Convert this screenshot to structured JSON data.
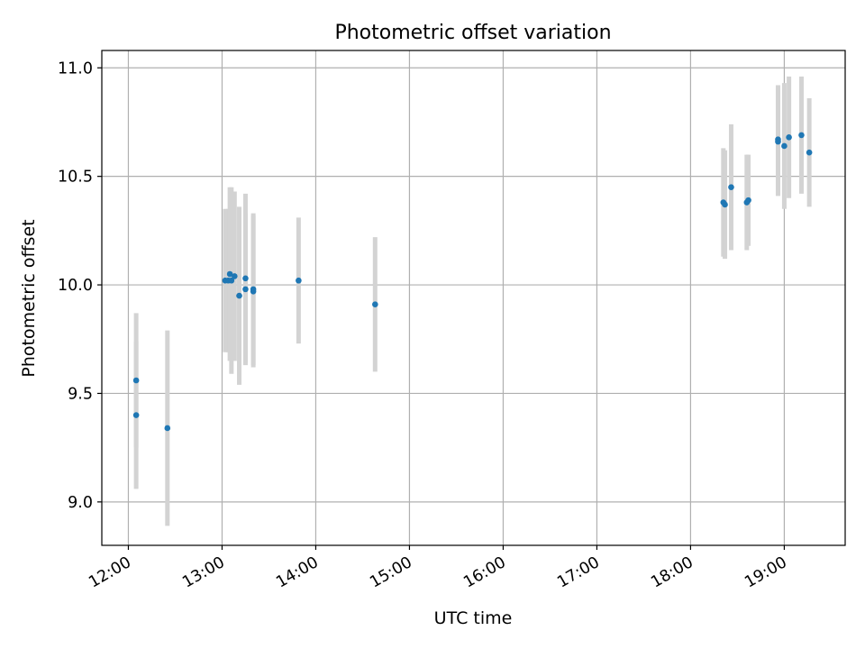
{
  "chart_data": {
    "type": "scatter",
    "title": "Photometric offset variation",
    "xlabel": "UTC time",
    "ylabel": "Photometric offset",
    "x_tick_labels": [
      "12:00",
      "13:00",
      "14:00",
      "15:00",
      "16:00",
      "17:00",
      "18:00",
      "19:00"
    ],
    "y_tick_labels": [
      "9.0",
      "9.5",
      "10.0",
      "10.5",
      "11.0"
    ],
    "x_ticks": [
      "12:00",
      "13:00",
      "14:00",
      "15:00",
      "16:00",
      "17:00",
      "18:00",
      "19:00"
    ],
    "y_ticks": [
      9.0,
      9.5,
      10.0,
      10.5,
      11.0
    ],
    "xlim": [
      "11:43",
      "19:39"
    ],
    "ylim": [
      8.8,
      11.08
    ],
    "grid": true,
    "colors": {
      "point": "#1f77b4",
      "errorbar": "#d3d3d3",
      "grid": "#b0b0b0"
    },
    "points": [
      {
        "x": "12:05",
        "y": 9.56,
        "yerr": 0.31
      },
      {
        "x": "12:05",
        "y": 9.4,
        "yerr": 0.34
      },
      {
        "x": "12:25",
        "y": 9.34,
        "yerr": 0.45
      },
      {
        "x": "13:02",
        "y": 10.02,
        "yerr": 0.33
      },
      {
        "x": "13:04",
        "y": 10.02,
        "yerr": 0.33
      },
      {
        "x": "13:05",
        "y": 10.05,
        "yerr": 0.4
      },
      {
        "x": "13:06",
        "y": 10.02,
        "yerr": 0.43
      },
      {
        "x": "13:08",
        "y": 10.04,
        "yerr": 0.39
      },
      {
        "x": "13:11",
        "y": 9.95,
        "yerr": 0.41
      },
      {
        "x": "13:15",
        "y": 10.03,
        "yerr": 0.39
      },
      {
        "x": "13:15",
        "y": 9.98,
        "yerr": 0.35
      },
      {
        "x": "13:20",
        "y": 9.97,
        "yerr": 0.35
      },
      {
        "x": "13:20",
        "y": 9.98,
        "yerr": 0.35
      },
      {
        "x": "13:49",
        "y": 10.02,
        "yerr": 0.29
      },
      {
        "x": "14:38",
        "y": 9.91,
        "yerr": 0.31
      },
      {
        "x": "18:21",
        "y": 10.38,
        "yerr": 0.25
      },
      {
        "x": "18:22",
        "y": 10.37,
        "yerr": 0.25
      },
      {
        "x": "18:26",
        "y": 10.45,
        "yerr": 0.29
      },
      {
        "x": "18:36",
        "y": 10.38,
        "yerr": 0.22
      },
      {
        "x": "18:37",
        "y": 10.39,
        "yerr": 0.21
      },
      {
        "x": "18:56",
        "y": 10.67,
        "yerr": 0.25
      },
      {
        "x": "18:56",
        "y": 10.66,
        "yerr": 0.25
      },
      {
        "x": "19:00",
        "y": 10.64,
        "yerr": 0.29
      },
      {
        "x": "19:03",
        "y": 10.68,
        "yerr": 0.28
      },
      {
        "x": "19:11",
        "y": 10.69,
        "yerr": 0.27
      },
      {
        "x": "19:16",
        "y": 10.61,
        "yerr": 0.25
      }
    ]
  }
}
